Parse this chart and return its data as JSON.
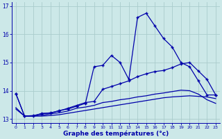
{
  "xlabel": "Graphe des températures (°c)",
  "x": [
    0,
    1,
    2,
    3,
    4,
    5,
    6,
    7,
    8,
    9,
    10,
    11,
    12,
    13,
    14,
    15,
    16,
    17,
    18,
    19,
    20,
    21,
    22,
    23
  ],
  "line_actual": [
    13.9,
    13.1,
    13.1,
    13.2,
    13.2,
    13.3,
    13.35,
    13.45,
    13.55,
    14.85,
    14.9,
    15.25,
    15.0,
    14.4,
    16.6,
    16.75,
    16.3,
    15.85,
    15.55,
    15.0,
    14.85,
    14.35,
    13.85,
    13.85
  ],
  "line_max": [
    13.9,
    13.1,
    13.12,
    13.18,
    13.22,
    13.28,
    13.38,
    13.48,
    13.58,
    13.62,
    14.05,
    14.15,
    14.25,
    14.35,
    14.5,
    14.6,
    14.68,
    14.72,
    14.82,
    14.95,
    15.0,
    14.7,
    14.4,
    13.85
  ],
  "line_avg": [
    13.4,
    13.1,
    13.1,
    13.13,
    13.18,
    13.22,
    13.28,
    13.38,
    13.42,
    13.48,
    13.58,
    13.62,
    13.68,
    13.72,
    13.78,
    13.82,
    13.88,
    13.92,
    13.97,
    14.02,
    14.0,
    13.88,
    13.68,
    13.55
  ],
  "line_min": [
    13.35,
    13.1,
    13.1,
    13.1,
    13.12,
    13.15,
    13.2,
    13.25,
    13.3,
    13.35,
    13.4,
    13.45,
    13.5,
    13.55,
    13.6,
    13.65,
    13.7,
    13.75,
    13.78,
    13.8,
    13.82,
    13.8,
    13.78,
    13.72
  ],
  "bg_color": "#cce8e8",
  "grid_color": "#aacccc",
  "line_color": "#0000aa",
  "marker": "+",
  "ylim": [
    12.85,
    17.15
  ],
  "yticks": [
    13,
    14,
    15,
    16,
    17
  ],
  "xticks": [
    0,
    1,
    2,
    3,
    4,
    5,
    6,
    7,
    8,
    9,
    10,
    11,
    12,
    13,
    14,
    15,
    16,
    17,
    18,
    19,
    20,
    21,
    22,
    23
  ]
}
